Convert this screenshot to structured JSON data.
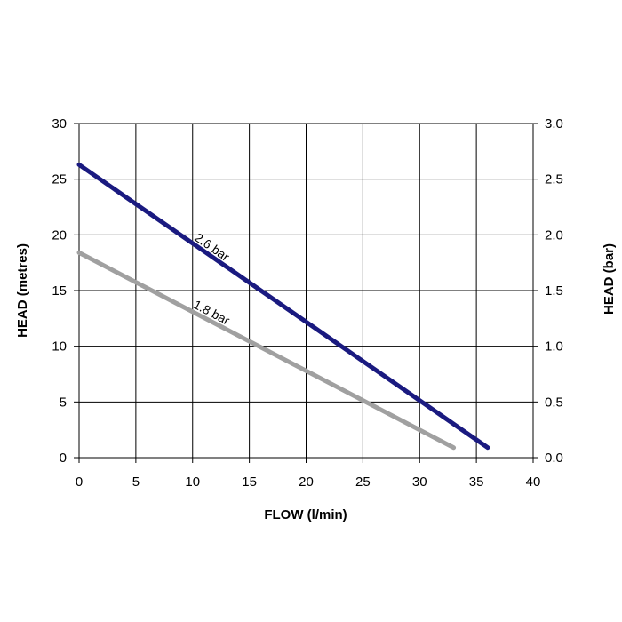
{
  "chart_data": {
    "type": "line",
    "title": "",
    "xlabel": "FLOW (l/min)",
    "ylabel": "HEAD (metres)",
    "y2label": "HEAD (bar)",
    "xlim": [
      0,
      40
    ],
    "ylim": [
      0,
      30
    ],
    "y2lim": [
      0.0,
      3.0
    ],
    "x_ticks": [
      "0",
      "5",
      "10",
      "15",
      "20",
      "25",
      "30",
      "35",
      "40"
    ],
    "y_ticks": [
      "0",
      "5",
      "10",
      "15",
      "20",
      "25",
      "30"
    ],
    "y2_ticks": [
      "0.0",
      "0.5",
      "1.0",
      "1.5",
      "2.0",
      "2.5",
      "3.0"
    ],
    "grid": true,
    "series": [
      {
        "name": "2.6 bar",
        "color": "#1a1a80",
        "x": [
          0,
          36
        ],
        "y": [
          26.3,
          0.9
        ]
      },
      {
        "name": "1.8 bar",
        "color": "#a0a0a0",
        "x": [
          0,
          33
        ],
        "y": [
          18.4,
          0.9
        ]
      }
    ]
  }
}
